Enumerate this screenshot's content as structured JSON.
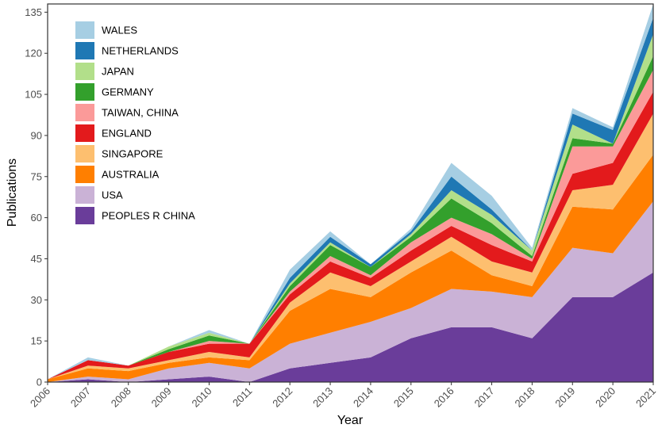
{
  "chart_data": {
    "type": "area",
    "stacked": true,
    "title": "",
    "xlabel": "Year",
    "ylabel": "Publications",
    "x": [
      2006,
      2007,
      2008,
      2009,
      2010,
      2011,
      2012,
      2013,
      2014,
      2015,
      2016,
      2017,
      2018,
      2019,
      2020,
      2021
    ],
    "xlim": [
      2006,
      2021
    ],
    "ylim": [
      0,
      138
    ],
    "y_ticks": [
      0,
      15,
      30,
      45,
      60,
      75,
      90,
      105,
      120,
      135
    ],
    "x_tick_labels": [
      "2006",
      "2007",
      "2008",
      "2009",
      "2010",
      "2011",
      "2012",
      "2013",
      "2014",
      "2015",
      "2016",
      "2017",
      "2018",
      "2019",
      "2020",
      "2021"
    ],
    "y_tick_labels": [
      "0",
      "15",
      "30",
      "45",
      "60",
      "75",
      "90",
      "105",
      "120",
      "135"
    ],
    "legend_position": "top-left",
    "series": [
      {
        "name": "PEOPLES R CHINA",
        "color": "#6a3d9a",
        "values": [
          0,
          1,
          0,
          1,
          2,
          0,
          5,
          7,
          9,
          16,
          20,
          20,
          16,
          31,
          31,
          40
        ]
      },
      {
        "name": "USA",
        "color": "#cab2d6",
        "values": [
          0,
          1,
          1,
          4,
          5,
          5,
          9,
          11,
          13,
          11,
          14,
          13,
          15,
          18,
          16,
          26
        ]
      },
      {
        "name": "AUSTRALIA",
        "color": "#ff7f00",
        "values": [
          1,
          3,
          3,
          2,
          2,
          3,
          12,
          16,
          9,
          13,
          14,
          6,
          4,
          15,
          16,
          17
        ]
      },
      {
        "name": "SINGAPORE",
        "color": "#fdbf6f",
        "values": [
          0,
          1,
          1,
          1,
          2,
          1,
          3,
          6,
          4,
          4,
          5,
          5,
          5,
          6,
          9,
          15
        ]
      },
      {
        "name": "ENGLAND",
        "color": "#e31a1c",
        "values": [
          0,
          2,
          1,
          3,
          3,
          5,
          3,
          4,
          3,
          4,
          4,
          6,
          4,
          6,
          8,
          8
        ]
      },
      {
        "name": "TAIWAN, CHINA",
        "color": "#fb9a99",
        "values": [
          0,
          0,
          0,
          0,
          1,
          0,
          1,
          2,
          1,
          3,
          3,
          4,
          1,
          10,
          6,
          8
        ]
      },
      {
        "name": "GERMANY",
        "color": "#33a02c",
        "values": [
          0,
          0,
          0,
          1,
          2,
          0,
          2,
          4,
          3,
          2,
          7,
          4,
          1,
          3,
          1,
          5
        ]
      },
      {
        "name": "JAPAN",
        "color": "#b2df8a",
        "values": [
          0,
          0,
          0,
          1,
          1,
          0,
          1,
          1,
          0,
          1,
          3,
          3,
          2,
          5,
          0,
          8
        ]
      },
      {
        "name": "NETHERLANDS",
        "color": "#1f78b4",
        "values": [
          0,
          0,
          0,
          0,
          0,
          0,
          2,
          2,
          1,
          1,
          5,
          2,
          0,
          4,
          5,
          6
        ]
      },
      {
        "name": "WALES",
        "color": "#a6cee3",
        "values": [
          0,
          1,
          0,
          0,
          1,
          0,
          3,
          2,
          0,
          1,
          5,
          5,
          1,
          2,
          1,
          5
        ]
      }
    ]
  }
}
